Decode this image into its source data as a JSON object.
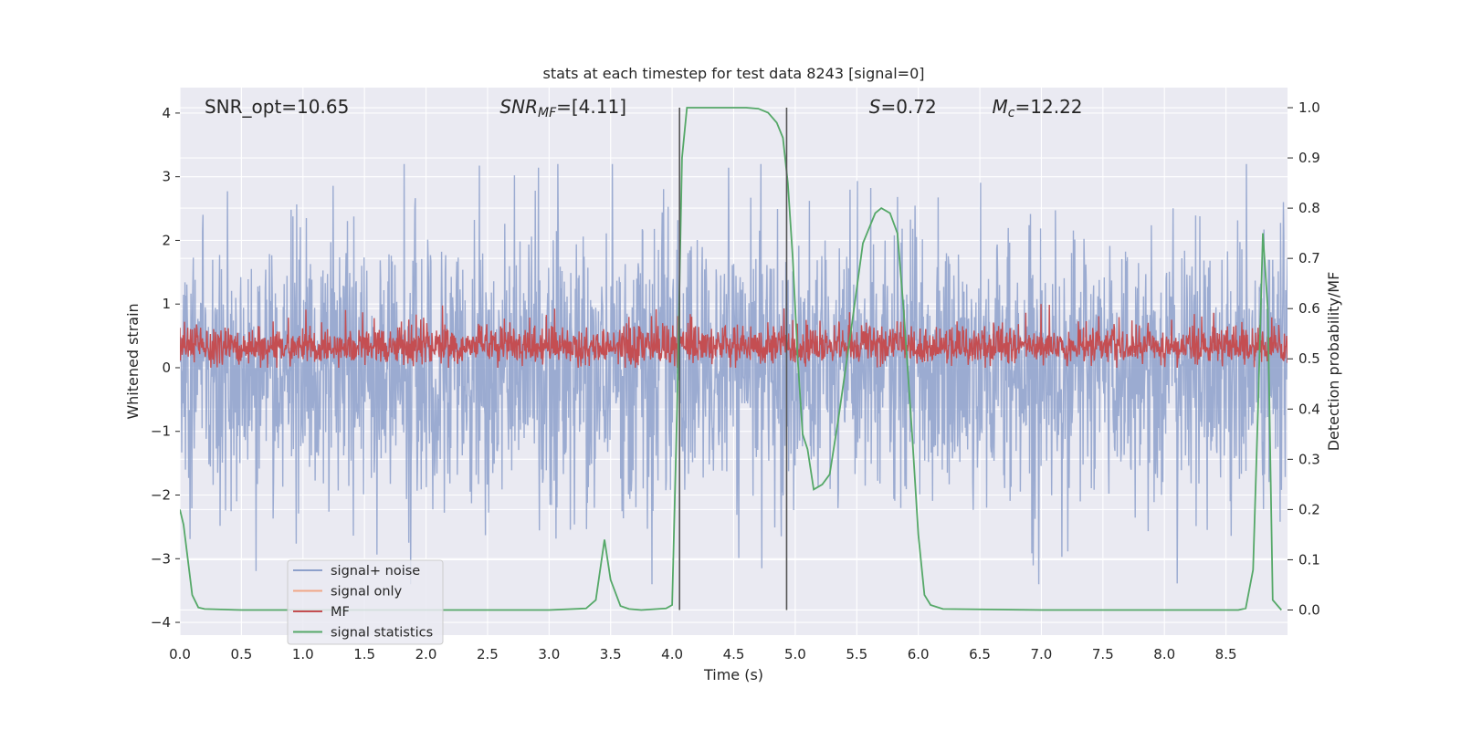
{
  "chart_data": {
    "type": "line",
    "title": "stats at each timestep for test data 8243 [signal=0]",
    "xlabel": "Time (s)",
    "ylabel": "Whitened strain",
    "ylabel_right": "Detection probability/MF",
    "xlim": [
      0.0,
      9.0
    ],
    "ylim": [
      -4.2,
      4.4
    ],
    "ylim_right": [
      -0.05,
      1.04
    ],
    "x_ticks": [
      "0.0",
      "0.5",
      "1.0",
      "1.5",
      "2.0",
      "2.5",
      "3.0",
      "3.5",
      "4.0",
      "4.5",
      "5.0",
      "5.5",
      "6.0",
      "6.5",
      "7.0",
      "7.5",
      "8.0",
      "8.5"
    ],
    "y_ticks": [
      "4",
      "3",
      "2",
      "1",
      "0",
      "−1",
      "−2",
      "−3",
      "−4"
    ],
    "y_ticks_right": [
      "1.0",
      "0.9",
      "0.8",
      "0.7",
      "0.6",
      "0.5",
      "0.4",
      "0.3",
      "0.2",
      "0.1",
      "0.0"
    ],
    "grid": true,
    "legend_position": "lower-left",
    "annotations": [
      {
        "text": "SNR_opt=10.65",
        "x": 0.2,
        "y": 4.1
      },
      {
        "text_main": "SNR",
        "text_sub": "MF",
        "text_rest": "=[4.11]",
        "x": 2.6,
        "y": 4.1,
        "italic": true
      },
      {
        "text_main": "S",
        "text_sub": "",
        "text_rest": "=0.72",
        "x": 5.6,
        "y": 4.1,
        "italic": true
      },
      {
        "text_main": "M",
        "text_sub": "c",
        "text_rest": "=12.22",
        "x": 6.6,
        "y": 4.1,
        "italic": true
      }
    ],
    "vlines": [
      4.06,
      4.93
    ],
    "series": [
      {
        "name": "signal+ noise",
        "color": "#8da0cb",
        "style": "noise",
        "amplitude_range": [
          -3.4,
          3.2
        ]
      },
      {
        "name": "signal only",
        "color": "#f0a787",
        "style": "flat",
        "values": []
      },
      {
        "name": "MF",
        "color": "#c44e52",
        "style": "noise-positive",
        "amplitude_range": [
          0.0,
          1.0
        ]
      },
      {
        "name": "signal statistics",
        "color": "#55a868",
        "axis": "right",
        "x": [
          0.0,
          0.03,
          0.1,
          0.15,
          0.2,
          0.5,
          1.0,
          2.0,
          3.0,
          3.3,
          3.38,
          3.45,
          3.5,
          3.58,
          3.65,
          3.75,
          3.95,
          4.0,
          4.04,
          4.08,
          4.12,
          4.18,
          4.4,
          4.6,
          4.7,
          4.78,
          4.85,
          4.9,
          4.94,
          4.98,
          5.02,
          5.06,
          5.1,
          5.15,
          5.22,
          5.28,
          5.35,
          5.45,
          5.55,
          5.65,
          5.7,
          5.77,
          5.83,
          5.88,
          5.95,
          6.0,
          6.05,
          6.1,
          6.2,
          7.0,
          8.0,
          8.6,
          8.66,
          8.72,
          8.76,
          8.8,
          8.84,
          8.88,
          8.95
        ],
        "values": [
          0.2,
          0.17,
          0.03,
          0.005,
          0.002,
          0.0,
          0.0,
          0.0,
          0.0,
          0.003,
          0.02,
          0.14,
          0.06,
          0.008,
          0.002,
          0.0,
          0.003,
          0.01,
          0.4,
          0.9,
          1.0,
          1.0,
          1.0,
          1.0,
          0.998,
          0.99,
          0.97,
          0.94,
          0.85,
          0.7,
          0.5,
          0.35,
          0.32,
          0.24,
          0.25,
          0.27,
          0.38,
          0.55,
          0.73,
          0.79,
          0.8,
          0.79,
          0.75,
          0.6,
          0.35,
          0.15,
          0.03,
          0.01,
          0.002,
          0.0,
          0.0,
          0.0,
          0.003,
          0.08,
          0.4,
          0.75,
          0.6,
          0.02,
          0.0
        ]
      }
    ],
    "colors": {
      "background": "#eaeaf2",
      "grid": "#ffffff",
      "vline": "#555555",
      "legend_frame": "#cccccc"
    }
  }
}
